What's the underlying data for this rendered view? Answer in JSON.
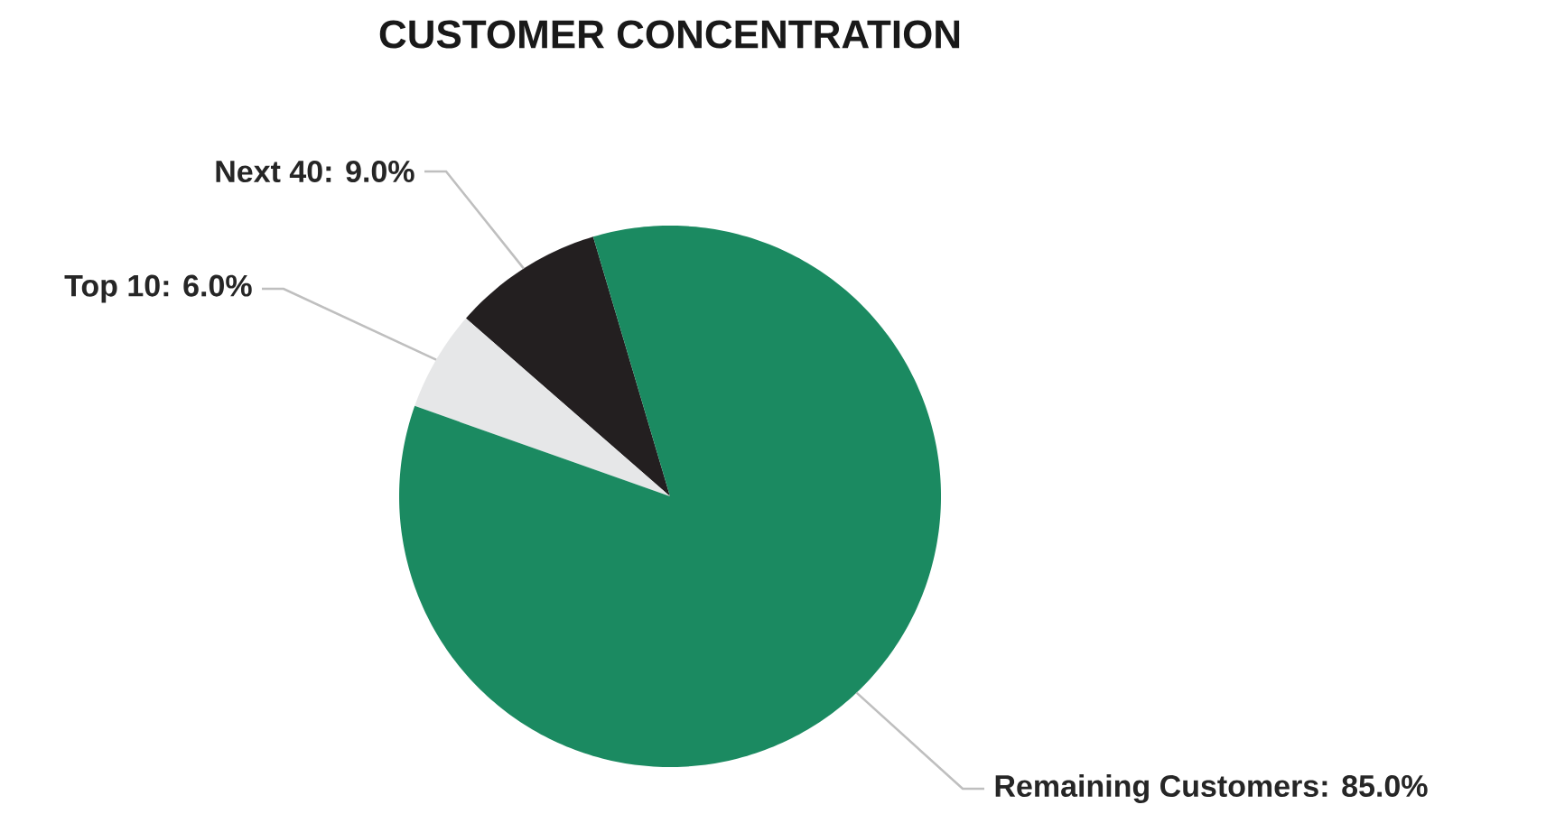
{
  "chart_data": {
    "type": "pie",
    "title": "CUSTOMER CONCENTRATION",
    "categories": [
      "Next 40: 9.0%",
      "Top 10: 6.0%",
      "Remaining Customers: 85.0%"
    ],
    "values": [
      9.0,
      6.0,
      85.0
    ],
    "colors": [
      "#231f20",
      "#e6e7e8",
      "#1b8a61"
    ]
  }
}
